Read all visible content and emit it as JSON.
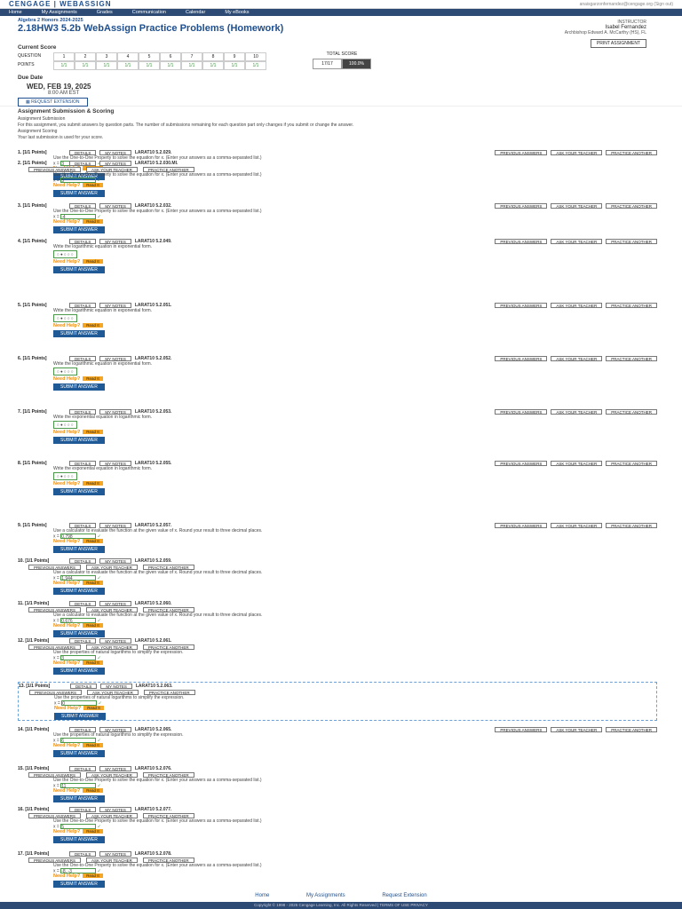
{
  "brand": {
    "logo": "CENGAGE | WEBASSIGN",
    "top_right": "anaisgarzonfernandez@cengage.org (Sign out)"
  },
  "nav": [
    "Home",
    "My Assignments",
    "Grades",
    "Communication",
    "Calendar",
    "My eBooks"
  ],
  "header": {
    "breadcrumb": "Algebra 2 Honors 2024-2025",
    "title": "2.18HW3 5.2b WebAssign Practice Problems (Homework)",
    "instructor_label": "INSTRUCTOR",
    "user_name": "Isabel Fernandez",
    "school": "Archbishop Edward A. McCarthy (HS), FL",
    "print_label": "PRINT ASSIGNMENT"
  },
  "score": {
    "heading": "Current Score",
    "question_label": "QUESTION",
    "points_label": "POINTS",
    "questions": [
      "1",
      "2",
      "3",
      "4",
      "5",
      "6",
      "7",
      "8",
      "9",
      "10"
    ],
    "points": [
      "1/1",
      "1/1",
      "1/1",
      "1/1",
      "1/1",
      "1/1",
      "1/1",
      "1/1",
      "1/1",
      "1/1"
    ],
    "total_label": "TOTAL SCORE",
    "total": "17/17",
    "percent": "100.0%"
  },
  "due": {
    "heading": "Due Date",
    "date": "WED, FEB 19, 2025",
    "time": "8:00 AM EST",
    "request_label": "REQUEST EXTENSION"
  },
  "submission": {
    "heading": "Assignment Submission & Scoring",
    "sub_heading": "Assignment Submission",
    "sub_text": "For this assignment, you submit answers by question parts. The number of submissions remaining for each question part only changes if you submit or change the answer.",
    "scoring_heading": "Assignment Scoring",
    "scoring_text": "Your last submission is used for your score."
  },
  "labels": {
    "details": "DETAILS",
    "notes": "MY NOTES",
    "previous": "PREVIOUS ANSWERS",
    "ask": "ASK YOUR TEACHER",
    "practice": "PRACTICE ANOTHER",
    "need_help": "Need Help?",
    "read_it": "Read It",
    "watch_it": "Watch It",
    "submit": "SUBMIT ANSWER",
    "master_it": "Master It"
  },
  "questions": [
    {
      "num": "1.",
      "points": "[1/1 Points]",
      "code": "LARAT10 5.2.029.",
      "text": "Use the One-to-One Property to solve the equation for x. (Enter your answers as a comma-separated list.)",
      "answer": "3"
    },
    {
      "num": "2.",
      "points": "[1/1 Points]",
      "code": "LARAT10 5.2.030.MI.",
      "text": "Use the One-to-One Property to solve the equation for x. (Enter your answers as a comma-separated list.)",
      "answer": "3"
    },
    {
      "num": "3.",
      "points": "[1/1 Points]",
      "code": "LARAT10 5.2.032.",
      "text": "Use the One-to-One Property to solve the equation for x. (Enter your answers as a comma-separated list.)",
      "answer": "-4"
    },
    {
      "num": "4.",
      "points": "[1/1 Points]",
      "code": "LARAT10 5.2.049.",
      "text": "Write the logarithmic equation in exponential form.",
      "answer": ""
    },
    {
      "num": "5.",
      "points": "[1/1 Points]",
      "code": "LARAT10 5.2.051.",
      "text": "Write the logarithmic equation in exponential form.",
      "answer": ""
    },
    {
      "num": "6.",
      "points": "[1/1 Points]",
      "code": "LARAT10 5.2.052.",
      "text": "Write the logarithmic equation in exponential form.",
      "answer": ""
    },
    {
      "num": "7.",
      "points": "[1/1 Points]",
      "code": "LARAT10 5.2.053.",
      "text": "Write the exponential equation in logarithmic form.",
      "answer": ""
    },
    {
      "num": "8.",
      "points": "[1/1 Points]",
      "code": "LARAT10 5.2.055.",
      "text": "Write the exponential equation in logarithmic form.",
      "answer": ""
    },
    {
      "num": "9.",
      "points": "[1/1 Points]",
      "code": "LARAT10 5.2.057.",
      "text": "Use a calculator to evaluate the function at the given value of x. Round your result to three decimal places.",
      "answer": "0.798"
    },
    {
      "num": "10.",
      "points": "[1/1 Points]",
      "code": "LARAT10 5.2.059.",
      "text": "Use a calculator to evaluate the function at the given value of x. Round your result to three decimal places.",
      "answer": "1.944"
    },
    {
      "num": "11.",
      "points": "[1/1 Points]",
      "code": "LARAT10 5.2.060.",
      "text": "Use a calculator to evaluate the function at the given value of x. Round your result to three decimal places.",
      "answer": "0.676"
    },
    {
      "num": "12.",
      "points": "[1/1 Points]",
      "code": "LARAT10 5.2.061.",
      "text": "Use the properties of natural logarithms to simplify the expression.",
      "answer": "3"
    },
    {
      "num": "13.",
      "points": "[1/1 Points]",
      "code": "LARAT10 5.2.063.",
      "text": "Use the properties of natural logarithms to simplify the expression.",
      "answer": "0"
    },
    {
      "num": "14.",
      "points": "[1/1 Points]",
      "code": "LARAT10 5.2.065.",
      "text": "Use the properties of natural logarithms to simplify the expression.",
      "answer": "6"
    },
    {
      "num": "15.",
      "points": "[1/1 Points]",
      "code": "LARAT10 5.2.076.",
      "text": "Use the One-to-One Property to solve the equation for x. (Enter your answers as a comma-separated list.)",
      "answer": "11"
    },
    {
      "num": "16.",
      "points": "[1/1 Points]",
      "code": "LARAT10 5.2.077.",
      "text": "Use the One-to-One Property to solve the equation for x. (Enter your answers as a comma-separated list.)",
      "answer": "5"
    },
    {
      "num": "17.",
      "points": "[1/1 Points]",
      "code": "LARAT10 5.2.078.",
      "text": "Use the One-to-One Property to solve the equation for x. (Enter your answers as a comma-separated list.)",
      "answer": "-8, -3"
    }
  ],
  "footer_nav": [
    "Home",
    "My Assignments",
    "Request Extension"
  ],
  "footer": "Copyright © 1998 - 2025 Cengage Learning, Inc. All Rights Reserved  |  TERMS OF USE  PRIVACY"
}
